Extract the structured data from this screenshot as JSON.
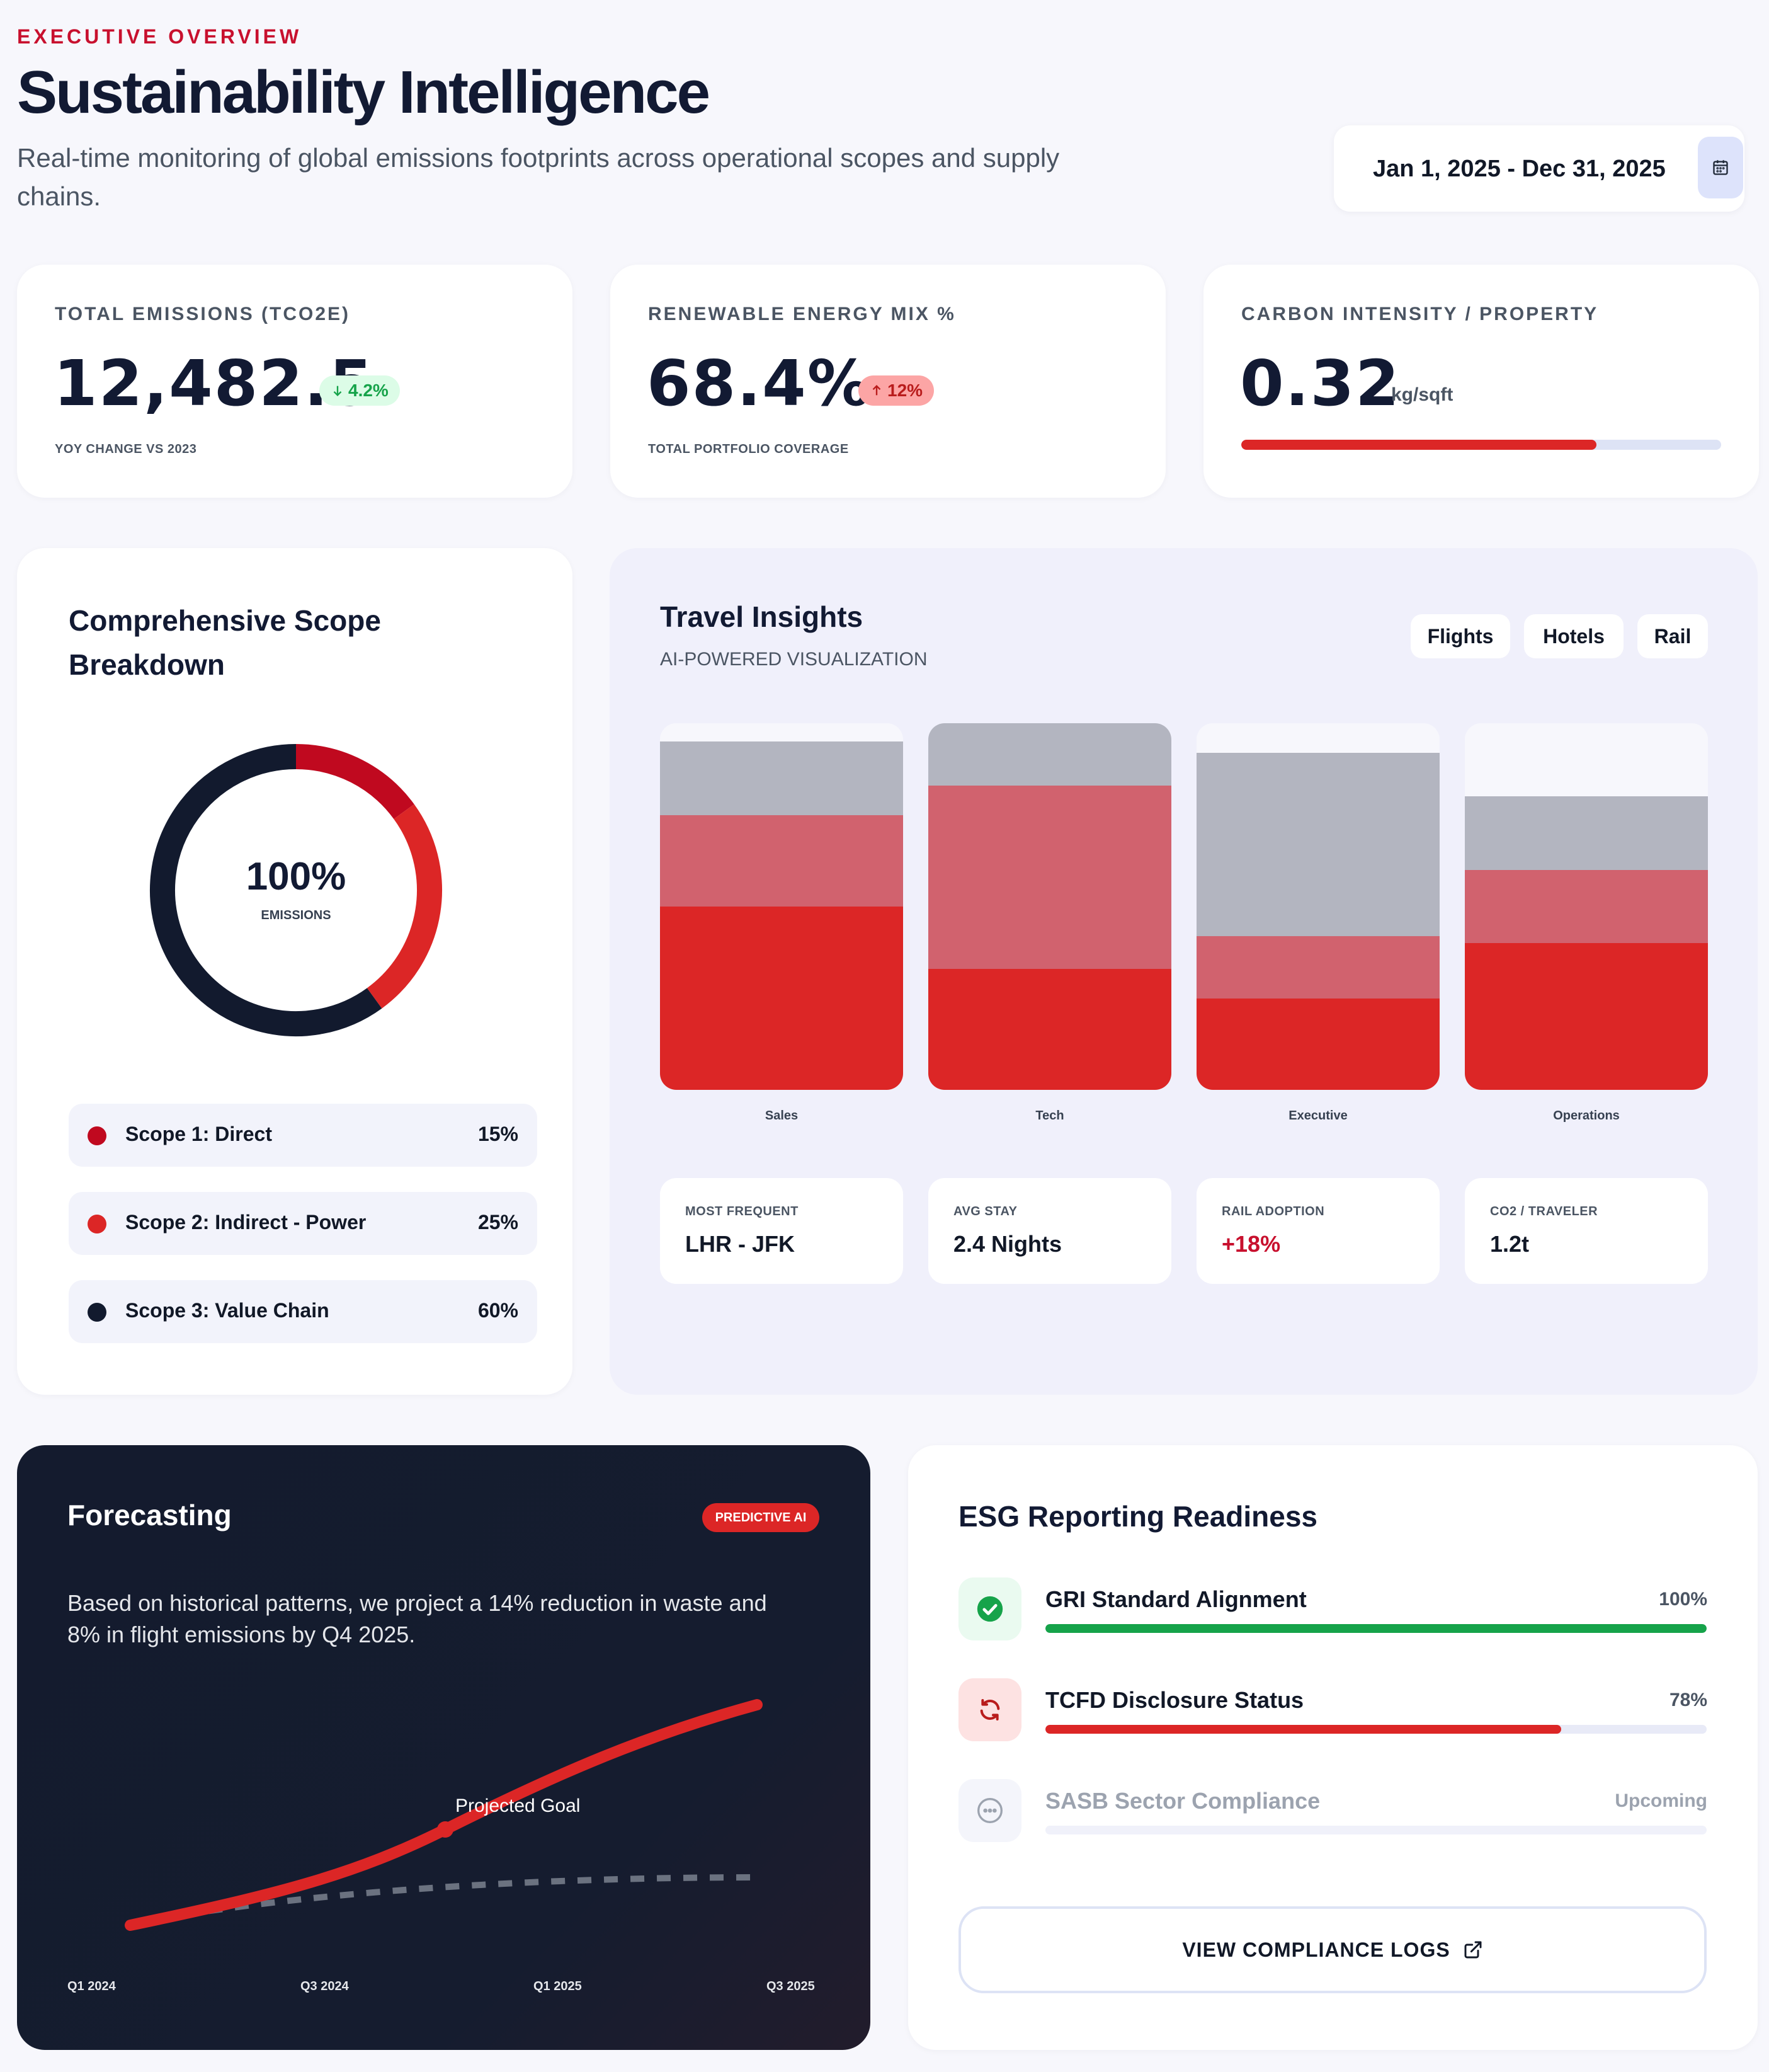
{
  "header": {
    "eyebrow": "EXECUTIVE OVERVIEW",
    "title": "Sustainability Intelligence",
    "subtitle": "Real-time monitoring of global emissions footprints across operational scopes and supply chains.",
    "date_range": "Jan 1, 2025 - Dec 31, 2025",
    "calendar_icon": "calendar-icon"
  },
  "kpis": [
    {
      "label": "TOTAL EMISSIONS (TCO2E)",
      "value": "12,482.5",
      "badge": "4.2%",
      "badge_icon": "arrow-down-icon",
      "footnote": "YOY CHANGE VS 2023",
      "badge_color": "#16a34a"
    },
    {
      "label": "RENEWABLE ENERGY MIX %",
      "value": "68.4%",
      "badge": "12%",
      "badge_icon": "arrow-up-icon",
      "footnote": "TOTAL PORTFOLIO COVERAGE",
      "badge_color": "#b91c1c"
    },
    {
      "label": "CARBON INTENSITY / PROPERTY",
      "value": "0.32",
      "unit": "kg/sqft",
      "progress": 0.74
    }
  ],
  "scope": {
    "title_line1": "Comprehensive Scope",
    "title_line2": "Breakdown",
    "center_value": "100%",
    "center_label": "EMISSIONS",
    "items": [
      {
        "name": "Scope 1: Direct",
        "pct_label": "15%",
        "value": 15,
        "color": "#c0091f"
      },
      {
        "name": "Scope 2: Indirect - Power",
        "pct_label": "25%",
        "value": 25,
        "color": "#dc2626"
      },
      {
        "name": "Scope 3: Value Chain",
        "pct_label": "60%",
        "value": 60,
        "color": "#121a2e"
      }
    ]
  },
  "travel": {
    "title": "Travel Insights",
    "subtitle": "AI-POWERED VISUALIZATION",
    "tabs": [
      "Flights",
      "Hotels",
      "Rail"
    ],
    "stats": [
      {
        "label": "MOST FREQUENT",
        "value": "LHR - JFK",
        "color": "#111827"
      },
      {
        "label": "AVG STAY",
        "value": "2.4 Nights",
        "color": "#111827"
      },
      {
        "label": "RAIL ADOPTION",
        "value": "+18%",
        "color": "#c8102e"
      },
      {
        "label": "CO2 / TRAVELER",
        "value": "1.2t",
        "color": "#111827"
      }
    ]
  },
  "chart_data": {
    "type": "bar",
    "stacked": true,
    "categories": [
      "Sales",
      "Tech",
      "Executive",
      "Operations"
    ],
    "series": [
      {
        "values": [
          50,
          33,
          25,
          40
        ],
        "color": "#dc2626"
      },
      {
        "values": [
          25,
          50,
          17,
          20
        ],
        "color": "#d1626e"
      },
      {
        "values": [
          20,
          17,
          50,
          20
        ],
        "color": "#b3b5c0"
      }
    ],
    "ylim": [
      0,
      100
    ]
  },
  "forecast": {
    "title": "Forecasting",
    "badge": "PREDICTIVE AI",
    "description": "Based on historical patterns, we project a 14% reduction in waste and 8% in flight emissions by Q4 2025.",
    "annotation": "Projected Goal",
    "x_labels": [
      "Q1 2024",
      "Q3 2024",
      "Q1 2025",
      "Q3 2025"
    ],
    "line_color": "#dc2626",
    "baseline_color": "#6b7280"
  },
  "esg": {
    "title": "ESG Reporting Readiness",
    "items": [
      {
        "name": "GRI Standard Alignment",
        "status": "100%",
        "progress": 1.0,
        "icon": "check-circle-icon",
        "color": "#16a34a",
        "state": "done"
      },
      {
        "name": "TCFD Disclosure Status",
        "status": "78%",
        "progress": 0.78,
        "icon": "refresh-icon",
        "color": "#dc2626",
        "state": "active"
      },
      {
        "name": "SASB Sector Compliance",
        "status": "Upcoming",
        "progress": 0,
        "icon": "more-horizontal-icon",
        "color": "#9ca3af",
        "state": "upcoming"
      }
    ],
    "button_label": "VIEW COMPLIANCE LOGS",
    "button_icon": "external-link-icon"
  }
}
